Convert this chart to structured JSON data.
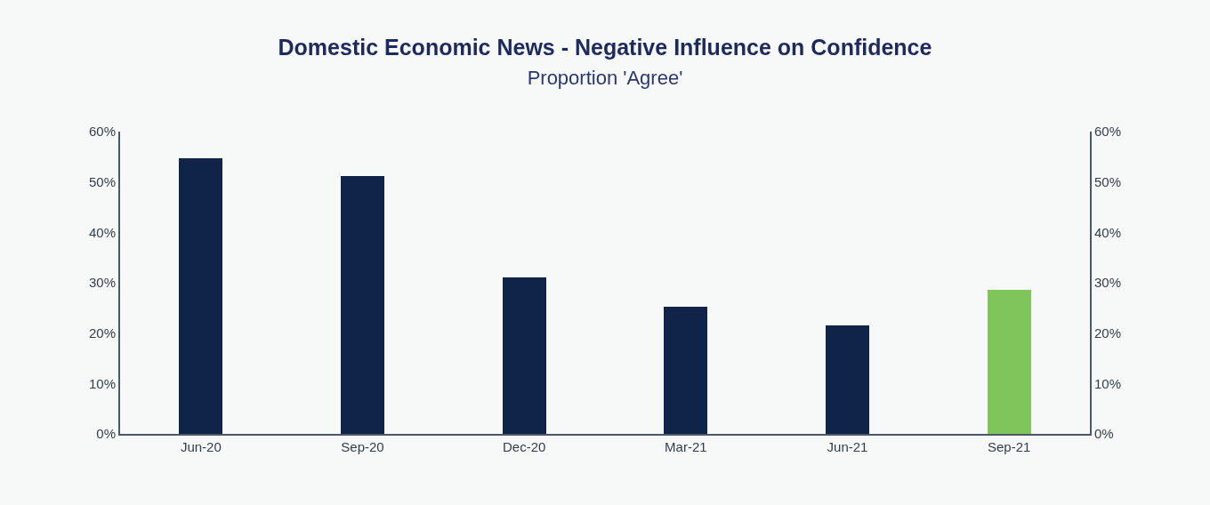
{
  "chart_data": {
    "type": "bar",
    "title": "Domestic Economic News - Negative Influence on Confidence",
    "subtitle": "Proportion 'Agree'",
    "categories": [
      "Jun-20",
      "Sep-20",
      "Dec-20",
      "Mar-21",
      "Jun-21",
      "Sep-21"
    ],
    "values": [
      54.7,
      51.1,
      31.1,
      25.3,
      21.6,
      28.6
    ],
    "colors": [
      "#10244a",
      "#10244a",
      "#10244a",
      "#10244a",
      "#10244a",
      "#80c45c"
    ],
    "ylim": [
      0,
      60
    ],
    "yticks": [
      {
        "value": 0,
        "label": "0%"
      },
      {
        "value": 10,
        "label": "10%"
      },
      {
        "value": 20,
        "label": "20%"
      },
      {
        "value": 30,
        "label": "30%"
      },
      {
        "value": 40,
        "label": "40%"
      },
      {
        "value": 50,
        "label": "50%"
      },
      {
        "value": 60,
        "label": "60%"
      }
    ],
    "y2lim": [
      0,
      60
    ],
    "y2ticks": [
      {
        "value": 0,
        "label": "0%"
      },
      {
        "value": 10,
        "label": "10%"
      },
      {
        "value": 20,
        "label": "20%"
      },
      {
        "value": 30,
        "label": "30%"
      },
      {
        "value": 40,
        "label": "40%"
      },
      {
        "value": 50,
        "label": "50%"
      },
      {
        "value": 60,
        "label": "60%"
      }
    ],
    "grid": false
  }
}
